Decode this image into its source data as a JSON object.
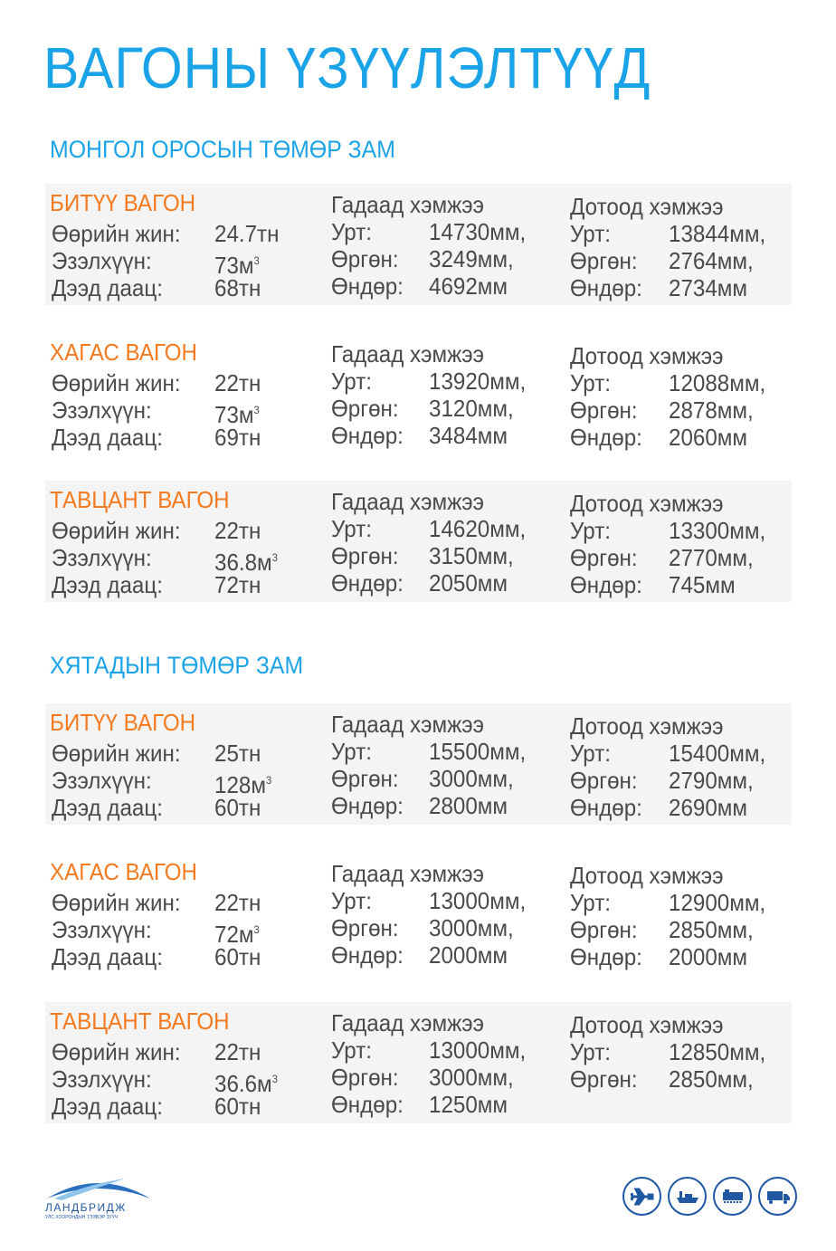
{
  "title": "ВАГОНЫ ҮЗҮҮЛЭЛТҮҮД",
  "sections": [
    {
      "title": "МОНГОЛ ОРОСЫН ТӨМӨР ЗАМ",
      "blocks": [
        {
          "name": "БИТҮҮ ВАГОН",
          "own_weight": "24.7тн",
          "volume": "73м",
          "capacity": "68тн",
          "outer": {
            "length": "14730мм,",
            "width": "3249мм,",
            "height": "4692мм"
          },
          "inner": {
            "length": "13844мм,",
            "width": "2764мм,",
            "height": "2734мм"
          }
        },
        {
          "name": "ХАГАС ВАГОН",
          "own_weight": "22тн",
          "volume": "73м",
          "capacity": "69тн",
          "outer": {
            "length": "13920мм,",
            "width": "3120мм,",
            "height": "3484мм"
          },
          "inner": {
            "length": "12088мм,",
            "width": "2878мм,",
            "height": "2060мм"
          }
        },
        {
          "name": "ТАВЦАНТ ВАГОН",
          "own_weight": "22тн",
          "volume": "36.8м",
          "capacity": "72тн",
          "outer": {
            "length": "14620мм,",
            "width": "3150мм,",
            "height": "2050мм"
          },
          "inner": {
            "length": "13300мм,",
            "width": "2770мм,",
            "height": "745мм"
          }
        }
      ]
    },
    {
      "title": "ХЯТАДЫН ТӨМӨР ЗАМ",
      "blocks": [
        {
          "name": "БИТҮҮ ВАГОН",
          "own_weight": "25тн",
          "volume": "128м",
          "capacity": "60тн",
          "outer": {
            "length": "15500мм,",
            "width": "3000мм,",
            "height": "2800мм"
          },
          "inner": {
            "length": "15400мм,",
            "width": "2790мм,",
            "height": "2690мм"
          }
        },
        {
          "name": "ХАГАС ВАГОН",
          "own_weight": "22тн",
          "volume": "72м",
          "capacity": "60тн",
          "outer": {
            "length": "13000мм,",
            "width": "3000мм,",
            "height": "2000мм"
          },
          "inner": {
            "length": "12900мм,",
            "width": "2850мм,",
            "height": "2000мм"
          }
        },
        {
          "name": "ТАВЦАНТ ВАГОН",
          "own_weight": "22тн",
          "volume": "36.6м",
          "capacity": "60тн",
          "outer": {
            "length": "13000мм,",
            "width": "3000мм,",
            "height": "1250мм"
          },
          "inner": {
            "length": "12850мм,",
            "width": "2850мм,"
          }
        }
      ]
    }
  ],
  "labels": {
    "own_weight": "Өөрийн жин:",
    "volume": "Эзэлхүүн:",
    "capacity": "Дээд даац:",
    "outer": "Гадаад хэмжээ",
    "inner": "Дотоод хэмжээ",
    "length": "Урт:",
    "width": "Өргөн:",
    "height": "Өндөр:",
    "cube": "3"
  },
  "logo": {
    "name": "ЛАНДБРИДЖ",
    "tagline": "УЛС ХООРОНДЫН ТЭЭВЭР ЗУУЧ"
  },
  "icons": [
    "airplane-icon",
    "ship-icon",
    "train-icon",
    "truck-icon"
  ],
  "colors": {
    "title": "#1ba3e8",
    "wagon": "#f47a20",
    "text": "#4a4a4a",
    "panel": "#f4f4f4",
    "icons": "#1f57a3"
  }
}
